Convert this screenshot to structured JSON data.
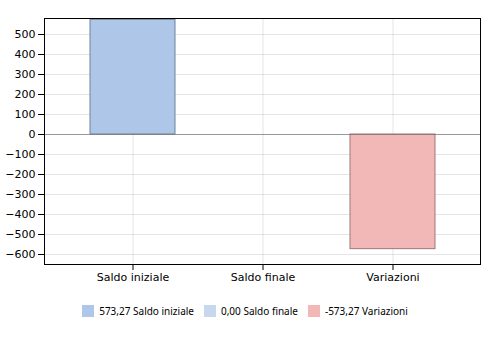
{
  "chart_data": {
    "type": "bar",
    "categories": [
      "Saldo iniziale",
      "Saldo finale",
      "Variazioni"
    ],
    "series": [
      {
        "name": "573,27 Saldo iniziale",
        "color": "#aec6e8",
        "values": [
          573.27,
          null,
          null
        ]
      },
      {
        "name": "0,00 Saldo finale",
        "color": "#c5d8ee",
        "values": [
          null,
          0.0,
          null
        ]
      },
      {
        "name": "-573,27 Variazioni",
        "color": "#f2b8b8",
        "values": [
          null,
          null,
          -573.27
        ]
      }
    ],
    "ylim": [
      -650,
      580
    ],
    "yticks": [
      -600,
      -500,
      -400,
      -300,
      -200,
      -100,
      0,
      100,
      200,
      300,
      400,
      500
    ],
    "grid": true,
    "legend": "bottom"
  }
}
